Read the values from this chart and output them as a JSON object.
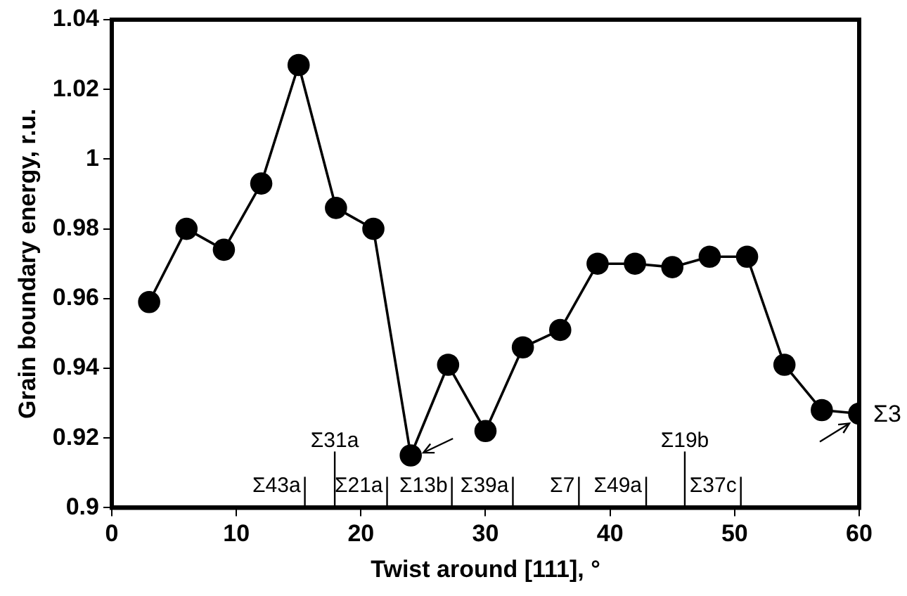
{
  "chart_data": {
    "type": "line",
    "xlabel": "Twist around [111], °",
    "ylabel": "Grain boundary energy, r.u.",
    "x": [
      3,
      6,
      9,
      12,
      15,
      18,
      21,
      24,
      27,
      30,
      33,
      36,
      39,
      42,
      45,
      48,
      51,
      54,
      57,
      60
    ],
    "series": [
      {
        "color": "#000000",
        "values": [
          0.959,
          0.98,
          0.974,
          0.993,
          1.027,
          0.986,
          0.98,
          0.915,
          0.941,
          0.922,
          0.946,
          0.951,
          0.97,
          0.97,
          0.969,
          0.972,
          0.972,
          0.941,
          0.928,
          0.927
        ]
      }
    ],
    "xlim": [
      0,
      60
    ],
    "xticks": [
      0,
      10,
      20,
      30,
      40,
      50,
      60
    ],
    "ylim": [
      0.9,
      1.04
    ],
    "yticks": [
      0.9,
      0.92,
      0.94,
      0.96,
      0.98,
      1,
      1.02,
      1.04
    ],
    "marker": "circle",
    "line_style": "solid",
    "grid": false,
    "legend": false,
    "ref_lines": [
      {
        "axis": "x",
        "value": 15.5,
        "label": "Σ43a"
      },
      {
        "axis": "x",
        "value": 17.9,
        "label": "Σ31a"
      },
      {
        "axis": "x",
        "value": 22.1,
        "label": "Σ21a"
      },
      {
        "axis": "x",
        "value": 27.3,
        "label": "Σ13b"
      },
      {
        "axis": "x",
        "value": 32.2,
        "label": "Σ39a"
      },
      {
        "axis": "x",
        "value": 37.5,
        "label": "Σ7"
      },
      {
        "axis": "x",
        "value": 42.9,
        "label": "Σ49a"
      },
      {
        "axis": "x",
        "value": 46,
        "label": "Σ19b"
      },
      {
        "axis": "x",
        "value": 50.5,
        "label": "Σ37c"
      }
    ],
    "annotations": [
      {
        "text": "Σ3",
        "x": 60,
        "y": 0.927
      }
    ]
  }
}
